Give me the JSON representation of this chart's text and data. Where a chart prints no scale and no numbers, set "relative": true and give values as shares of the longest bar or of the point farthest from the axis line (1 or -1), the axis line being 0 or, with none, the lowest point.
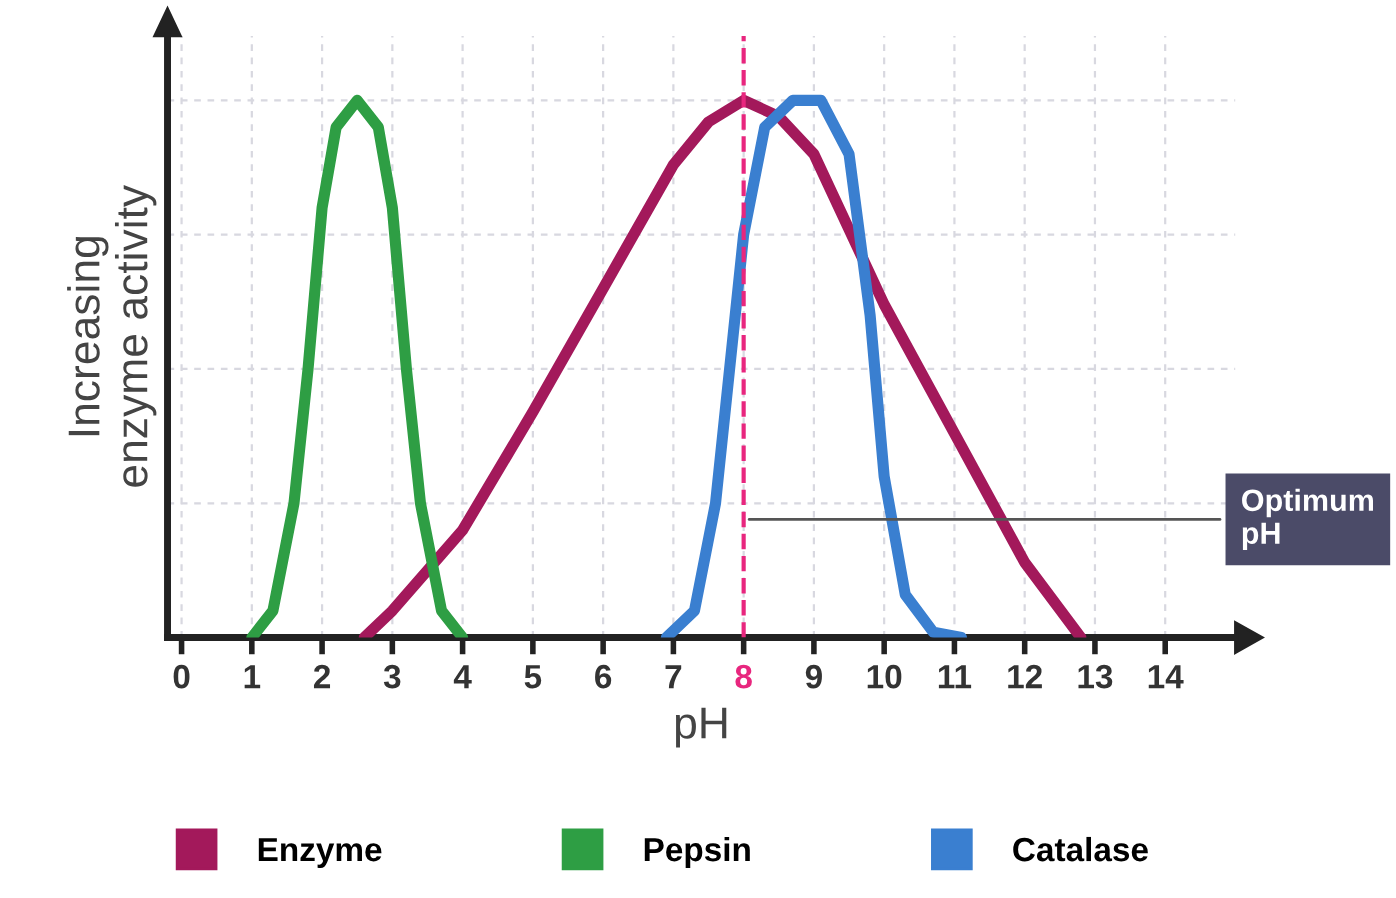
{
  "chart_data": {
    "type": "line",
    "relative": true,
    "xlabel": "pH",
    "ylabel": "Increasing\nenzyme activity",
    "xlim": [
      -0.2,
      15
    ],
    "xticks": [
      0,
      1,
      2,
      3,
      4,
      5,
      6,
      7,
      8,
      9,
      10,
      11,
      12,
      13,
      14
    ],
    "grid": true,
    "legend": "bottom",
    "marker": "none",
    "line_style": "solid",
    "series": [
      {
        "name": "Enzyme",
        "color": "#a3195b",
        "x": [
          2.6,
          3,
          4,
          5,
          6,
          7,
          7.5,
          8,
          8.5,
          9,
          10,
          11,
          12,
          12.8
        ],
        "values": [
          0,
          0.05,
          0.2,
          0.42,
          0.65,
          0.88,
          0.96,
          1.0,
          0.97,
          0.9,
          0.62,
          0.38,
          0.14,
          0
        ]
      },
      {
        "name": "Pepsin",
        "color": "#2e9e44",
        "x": [
          1,
          1.3,
          1.6,
          1.8,
          2,
          2.2,
          2.5,
          2.8,
          3,
          3.2,
          3.4,
          3.7,
          4
        ],
        "values": [
          0,
          0.05,
          0.25,
          0.5,
          0.8,
          0.95,
          1,
          0.95,
          0.8,
          0.5,
          0.25,
          0.05,
          0
        ]
      },
      {
        "name": "Catalase",
        "color": "#3a7fd0",
        "x": [
          6.9,
          7.3,
          7.6,
          7.8,
          8,
          8.3,
          8.7,
          9.1,
          9.5,
          9.8,
          10,
          10.3,
          10.7,
          11.1
        ],
        "values": [
          0,
          0.05,
          0.25,
          0.5,
          0.75,
          0.95,
          1,
          1,
          0.9,
          0.6,
          0.3,
          0.08,
          0.01,
          0
        ]
      }
    ],
    "ref_lines": [
      {
        "axis": "x",
        "value": 8,
        "color": "#e8267e",
        "line_style": "dashed"
      }
    ],
    "annotations": [
      {
        "text": "Optimum\npH",
        "x": 8,
        "y": 0.22
      }
    ]
  }
}
